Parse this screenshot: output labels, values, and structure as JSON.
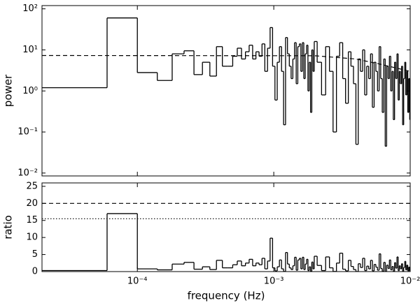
{
  "chart_data": [
    {
      "type": "line",
      "ylabel": "power",
      "xlog": true,
      "ylog": true,
      "xlim": [
        2e-05,
        0.01
      ],
      "ylim": [
        0.0085,
        120
      ],
      "xticks": [
        0.0001,
        0.001,
        0.01
      ],
      "yticks": [
        {
          "value": 0.01,
          "label": "10⁻²"
        },
        {
          "value": 0.1,
          "label": "10⁻¹"
        },
        {
          "value": 1,
          "label": "10⁰"
        },
        {
          "value": 10,
          "label": "10¹"
        },
        {
          "value": 100,
          "label": "10²"
        }
      ],
      "series": [
        {
          "color": "#000000",
          "step": "mid",
          "x": [
            4e-05,
            8e-05,
            0.00012,
            0.00016,
            0.0002,
            0.00024,
            0.00028,
            0.00032,
            0.00036,
            0.0004,
            0.00044,
            0.00048,
            0.00052,
            0.00056,
            0.0006,
            0.00064,
            0.00068,
            0.00072,
            0.00076,
            0.0008,
            0.00084,
            0.00088,
            0.00092,
            0.00096,
            0.001,
            0.00104,
            0.00108,
            0.00112,
            0.00116,
            0.0012,
            0.00124,
            0.00128,
            0.00132,
            0.00136,
            0.0014,
            0.00144,
            0.00148,
            0.00152,
            0.00156,
            0.0016,
            0.00164,
            0.00168,
            0.00172,
            0.00176,
            0.0018,
            0.00184,
            0.00188,
            0.00192,
            0.00196,
            0.002,
            0.00216,
            0.00232,
            0.00248,
            0.00264,
            0.0028,
            0.00296,
            0.00312,
            0.00328,
            0.00344,
            0.0036,
            0.00376,
            0.00392,
            0.00408,
            0.00424,
            0.0044,
            0.00456,
            0.00472,
            0.00488,
            0.00504,
            0.0052,
            0.00536,
            0.00552,
            0.00568,
            0.00584,
            0.006,
            0.00616,
            0.00632,
            0.00648,
            0.00664,
            0.0068,
            0.00696,
            0.00712,
            0.00728,
            0.00744,
            0.0076,
            0.00776,
            0.00792,
            0.00808,
            0.00824,
            0.0084,
            0.00856,
            0.00872,
            0.00888,
            0.00904,
            0.0092,
            0.00936,
            0.00952,
            0.00968,
            0.00984,
            0.01
          ],
          "values": [
            1.2,
            60,
            2.8,
            1.8,
            8,
            9.5,
            2.5,
            5,
            2.3,
            12,
            4,
            4,
            7,
            11,
            6,
            9,
            13,
            6,
            9,
            7,
            14,
            3,
            11,
            35,
            4,
            0.6,
            5,
            12,
            3,
            0.15,
            20,
            8,
            4,
            2,
            6,
            15,
            1.5,
            12,
            14,
            3,
            15,
            2,
            8,
            13,
            1,
            5,
            0.3,
            10,
            3,
            16,
            5,
            0.8,
            12,
            3,
            0.1,
            7,
            15,
            2,
            0.5,
            9,
            4,
            1.5,
            0.05,
            6,
            3,
            10,
            0.8,
            4,
            2,
            8,
            0.4,
            5,
            3,
            1,
            12,
            2,
            0.3,
            6,
            0.045,
            4,
            2,
            7,
            1,
            3,
            0.2,
            5,
            2,
            8,
            0.6,
            3,
            1.5,
            4,
            0.15,
            2,
            5,
            0.8,
            3,
            0.3,
            2,
            0.2
          ]
        },
        {
          "color": "#000000",
          "dash": "dashed",
          "x": [
            2e-05,
            0.002,
            0.004,
            0.006,
            0.01
          ],
          "values": [
            7.3,
            7.2,
            6,
            4.5,
            3
          ]
        }
      ]
    },
    {
      "type": "line",
      "ylabel": "ratio",
      "xlabel": "frequency (Hz)",
      "xlog": true,
      "ylog": false,
      "xlim": [
        2e-05,
        0.01
      ],
      "ylim": [
        0,
        26
      ],
      "xticks": [
        {
          "value": 0.0001,
          "label": "10⁻⁴"
        },
        {
          "value": 0.001,
          "label": "10⁻³"
        },
        {
          "value": 0.01,
          "label": "10⁻²"
        }
      ],
      "yticks": [
        0,
        5,
        10,
        15,
        20,
        25
      ],
      "hlines": [
        {
          "value": 20,
          "style": "dashed"
        },
        {
          "value": 15.5,
          "style": "dotted"
        }
      ],
      "series": [
        {
          "color": "#000000",
          "step": "mid",
          "x": [
            4e-05,
            8e-05,
            0.00012,
            0.00016,
            0.0002,
            0.00024,
            0.00028,
            0.00032,
            0.00036,
            0.0004,
            0.00044,
            0.00048,
            0.00052,
            0.00056,
            0.0006,
            0.00064,
            0.00068,
            0.00072,
            0.00076,
            0.0008,
            0.00084,
            0.00088,
            0.00092,
            0.00096,
            0.001,
            0.00104,
            0.00108,
            0.00112,
            0.00116,
            0.0012,
            0.00124,
            0.00128,
            0.00132,
            0.00136,
            0.0014,
            0.00144,
            0.00148,
            0.00152,
            0.00156,
            0.0016,
            0.00164,
            0.00168,
            0.00172,
            0.00176,
            0.0018,
            0.00184,
            0.00188,
            0.00192,
            0.00196,
            0.002,
            0.00216,
            0.00232,
            0.00248,
            0.00264,
            0.0028,
            0.00296,
            0.00312,
            0.00328,
            0.00344,
            0.0036,
            0.00376,
            0.00392,
            0.00408,
            0.00424,
            0.0044,
            0.00456,
            0.00472,
            0.00488,
            0.00504,
            0.0052,
            0.00536,
            0.00552,
            0.00568,
            0.00584,
            0.006,
            0.00616,
            0.00632,
            0.00648,
            0.00664,
            0.0068,
            0.00696,
            0.00712,
            0.00728,
            0.00744,
            0.0076,
            0.00776,
            0.00792,
            0.00808,
            0.00824,
            0.0084,
            0.00856,
            0.00872,
            0.00888,
            0.00904,
            0.0092,
            0.00936,
            0.00952,
            0.00968,
            0.00984,
            0.01
          ],
          "values": [
            0.3,
            17,
            0.8,
            0.5,
            2.2,
            2.7,
            0.7,
            1.4,
            0.6,
            3.3,
            1.1,
            1.1,
            2,
            3.1,
            1.7,
            2.5,
            3.6,
            1.7,
            2.5,
            2,
            3.9,
            0.8,
            3.1,
            9.8,
            1.1,
            0.2,
            1.4,
            3.4,
            0.8,
            0.04,
            5.6,
            2.2,
            1.1,
            0.6,
            1.7,
            4.2,
            0.4,
            3.4,
            3.9,
            0.8,
            4.2,
            0.6,
            2.2,
            3.6,
            0.3,
            1.4,
            0.1,
            2.8,
            0.8,
            4.5,
            1.8,
            0.3,
            4.3,
            1.1,
            0.04,
            2.5,
            5.4,
            0.7,
            0.2,
            3.3,
            1.5,
            0.6,
            0.02,
            2.3,
            1.2,
            3.9,
            0.3,
            1.6,
            0.8,
            3.3,
            0.2,
            2.1,
            1.3,
            0.4,
            5.2,
            0.9,
            0.1,
            2.7,
            0.02,
            1.9,
            0.9,
            3.4,
            0.5,
            1.5,
            0.1,
            2.6,
            1,
            4.3,
            0.3,
            1.7,
            0.8,
            2.3,
            0.09,
            1.2,
            3,
            0.5,
            1.9,
            0.2,
            1.3,
            0.1
          ]
        }
      ]
    }
  ]
}
